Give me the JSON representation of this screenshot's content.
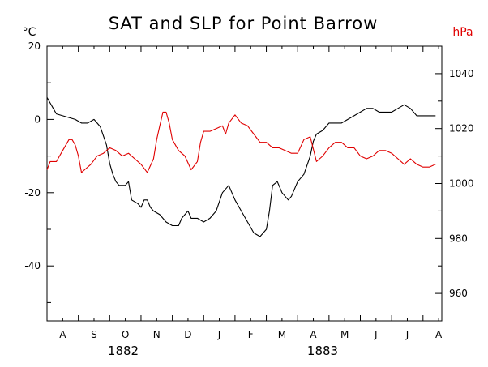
{
  "chart_data": {
    "type": "line",
    "title": "SAT and SLP for Point Barrow",
    "y_left_unit": "°C",
    "y_right_unit": "hPa",
    "y_left_range": [
      -55,
      20
    ],
    "y_right_range": [
      950,
      1050
    ],
    "y_left_ticks": [
      20,
      0,
      -20,
      -40
    ],
    "y_right_ticks": [
      1040,
      1020,
      1000,
      980,
      960
    ],
    "month_labels": [
      "A",
      "S",
      "O",
      "N",
      "D",
      "J",
      "F",
      "M",
      "A",
      "M",
      "J",
      "J",
      "A"
    ],
    "year_labels": [
      "1882",
      "1883"
    ],
    "x_range": [
      0,
      12.6
    ],
    "grid": false,
    "colors": {
      "sat": "#000000",
      "slp": "#e00000",
      "axis": "#000000"
    },
    "series": [
      {
        "axis": "left",
        "color": "#000000",
        "x": [
          0.0,
          0.1,
          0.2,
          0.3,
          0.5,
          0.7,
          0.9,
          1.1,
          1.3,
          1.5,
          1.7,
          1.9,
          2.0,
          2.1,
          2.2,
          2.3,
          2.5,
          2.6,
          2.7,
          2.9,
          3.0,
          3.1,
          3.2,
          3.3,
          3.4,
          3.6,
          3.8,
          4.0,
          4.2,
          4.3,
          4.5,
          4.6,
          4.8,
          5.0,
          5.2,
          5.4,
          5.6,
          5.8,
          6.0,
          6.2,
          6.4,
          6.6,
          6.8,
          7.0,
          7.1,
          7.2,
          7.35,
          7.5,
          7.7,
          7.8,
          8.0,
          8.2,
          8.4,
          8.5,
          8.6,
          8.8,
          9.0,
          9.2,
          9.4,
          9.6,
          9.8,
          10.0,
          10.2,
          10.4,
          10.6,
          10.8,
          11.0,
          11.2,
          11.4,
          11.6,
          11.8,
          12.0,
          12.2,
          12.4
        ],
        "y": [
          6,
          4.5,
          3,
          1.5,
          1,
          0.5,
          0,
          -1,
          -1,
          0,
          -2,
          -7,
          -12,
          -15,
          -17,
          -18,
          -18,
          -17,
          -22,
          -23,
          -24,
          -22,
          -22,
          -24,
          -25,
          -26,
          -28,
          -29,
          -29,
          -27,
          -25,
          -27,
          -27,
          -28,
          -27,
          -25,
          -20,
          -18,
          -22,
          -25,
          -28,
          -31,
          -32,
          -30,
          -25,
          -18,
          -17,
          -20,
          -22,
          -21,
          -17,
          -15,
          -10,
          -6,
          -4,
          -3,
          -1,
          -1,
          -1,
          0,
          1,
          2,
          3,
          3,
          2,
          2,
          2,
          3,
          4,
          3,
          1,
          1,
          1,
          1
        ]
      },
      {
        "axis": "right",
        "color": "#e00000",
        "x": [
          0.0,
          0.1,
          0.3,
          0.5,
          0.7,
          0.8,
          0.9,
          1.0,
          1.1,
          1.2,
          1.4,
          1.6,
          1.8,
          2.0,
          2.2,
          2.4,
          2.6,
          2.8,
          3.0,
          3.2,
          3.4,
          3.5,
          3.6,
          3.7,
          3.8,
          3.9,
          4.0,
          4.2,
          4.4,
          4.6,
          4.8,
          4.9,
          5.0,
          5.2,
          5.4,
          5.6,
          5.7,
          5.8,
          6.0,
          6.2,
          6.4,
          6.6,
          6.8,
          7.0,
          7.2,
          7.4,
          7.6,
          7.8,
          8.0,
          8.2,
          8.4,
          8.6,
          8.8,
          9.0,
          9.2,
          9.4,
          9.6,
          9.8,
          10.0,
          10.2,
          10.4,
          10.6,
          10.8,
          11.0,
          11.2,
          11.4,
          11.6,
          11.8,
          12.0,
          12.2,
          12.4
        ],
        "y": [
          1005,
          1008,
          1008,
          1012,
          1016,
          1016,
          1014,
          1010,
          1004,
          1005,
          1007,
          1010,
          1011,
          1013,
          1012,
          1010,
          1011,
          1009,
          1007,
          1004,
          1009,
          1016,
          1021,
          1026,
          1026,
          1022,
          1016,
          1012,
          1010,
          1005,
          1008,
          1015,
          1019,
          1019,
          1020,
          1021,
          1018,
          1022,
          1025,
          1022,
          1021,
          1018,
          1015,
          1015,
          1013,
          1013,
          1012,
          1011,
          1011,
          1016,
          1017,
          1008,
          1010,
          1013,
          1015,
          1015,
          1013,
          1013,
          1010,
          1009,
          1010,
          1012,
          1012,
          1011,
          1009,
          1007,
          1009,
          1007,
          1006,
          1006,
          1007
        ]
      }
    ]
  }
}
